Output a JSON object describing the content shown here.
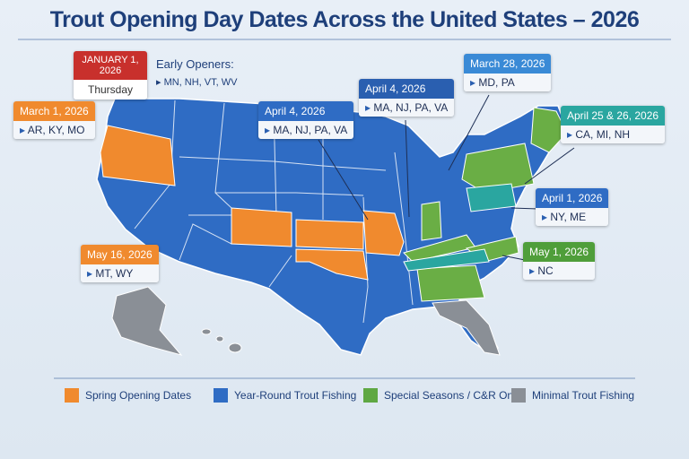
{
  "title": "Trout Opening Day Dates Across the United States – 2026",
  "calendar": {
    "date": "JANUARY 1, 2026",
    "day": "Thursday"
  },
  "early_openers": {
    "label": "Early Openers:",
    "states": "MN, NH, VT, WV"
  },
  "callouts": [
    {
      "date": "March 1, 2026",
      "states": "AR, KY, MO"
    },
    {
      "date": "April 4, 2026",
      "states": "MA, NJ, PA, VA"
    },
    {
      "date": "April 4, 2026",
      "states": "MA, NJ, PA, VA"
    },
    {
      "date": "March 28, 2026",
      "states": "MD, PA"
    },
    {
      "date": "April 25 & 26, 2026",
      "states": "CA, MI, NH"
    },
    {
      "date": "April 1, 2026",
      "states": "NY, ME"
    },
    {
      "date": "May 16, 2026",
      "states": "MT, WY"
    },
    {
      "date": "May 1, 2026",
      "states": "NC"
    }
  ],
  "legend": [
    "Spring Opening Dates",
    "Year-Round Trout Fishing",
    "Special Seasons / C&R Only",
    "Minimal Trout Fishing"
  ]
}
